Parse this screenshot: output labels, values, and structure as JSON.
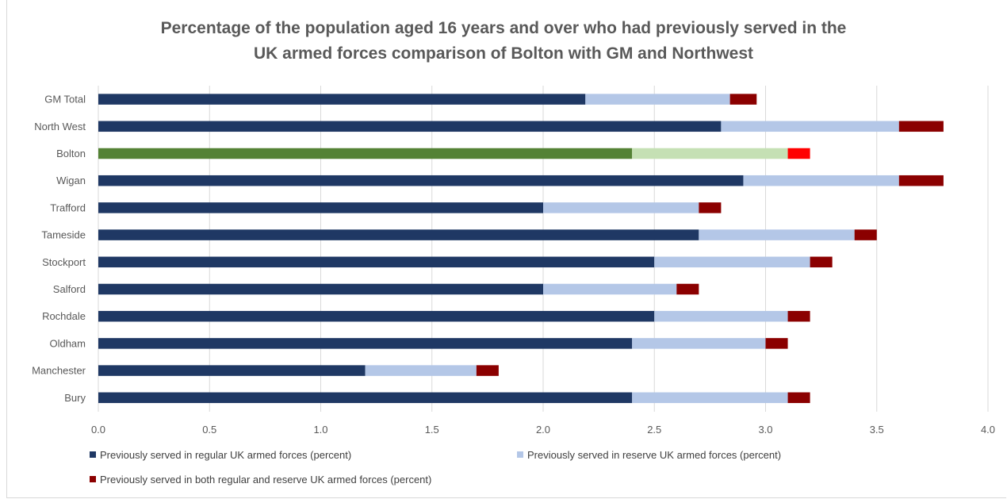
{
  "chart_data": {
    "type": "bar",
    "orientation": "horizontal",
    "stacked": true,
    "title_lines": [
      "Percentage of the population aged 16 years and over who had previously served in the",
      "UK armed forces  comparison of Bolton with GM and Northwest"
    ],
    "categories": [
      "GM Total",
      "North West",
      "Bolton",
      "Wigan",
      "Trafford",
      "Tameside",
      "Stockport",
      "Salford",
      "Rochdale",
      "Oldham",
      "Manchester",
      "Bury"
    ],
    "series": [
      {
        "name": "Previously served in regular UK armed forces (percent)",
        "color": "#1f3864",
        "values": [
          2.19,
          2.8,
          2.4,
          2.9,
          2.0,
          2.7,
          2.5,
          2.0,
          2.5,
          2.4,
          1.2,
          2.4
        ]
      },
      {
        "name": "Previously served in reserve UK armed forces (percent)",
        "color": "#b4c7e7",
        "values": [
          0.65,
          0.8,
          0.7,
          0.7,
          0.7,
          0.7,
          0.7,
          0.6,
          0.6,
          0.6,
          0.5,
          0.7
        ]
      },
      {
        "name": "Previously served in both regular and reserve UK armed forces (percent)",
        "color": "#8b0000",
        "values": [
          0.12,
          0.2,
          0.1,
          0.2,
          0.1,
          0.1,
          0.1,
          0.1,
          0.1,
          0.1,
          0.1,
          0.1
        ]
      }
    ],
    "highlight": {
      "category": "Bolton",
      "colors": [
        "#548235",
        "#c5e0b4",
        "#ff0000"
      ]
    },
    "xlim": [
      0,
      4
    ],
    "x_ticks": [
      "0.0",
      "0.5",
      "1.0",
      "1.5",
      "2.0",
      "2.5",
      "3.0",
      "3.5",
      "4.0"
    ],
    "grid": true,
    "legend_position": "bottom"
  }
}
